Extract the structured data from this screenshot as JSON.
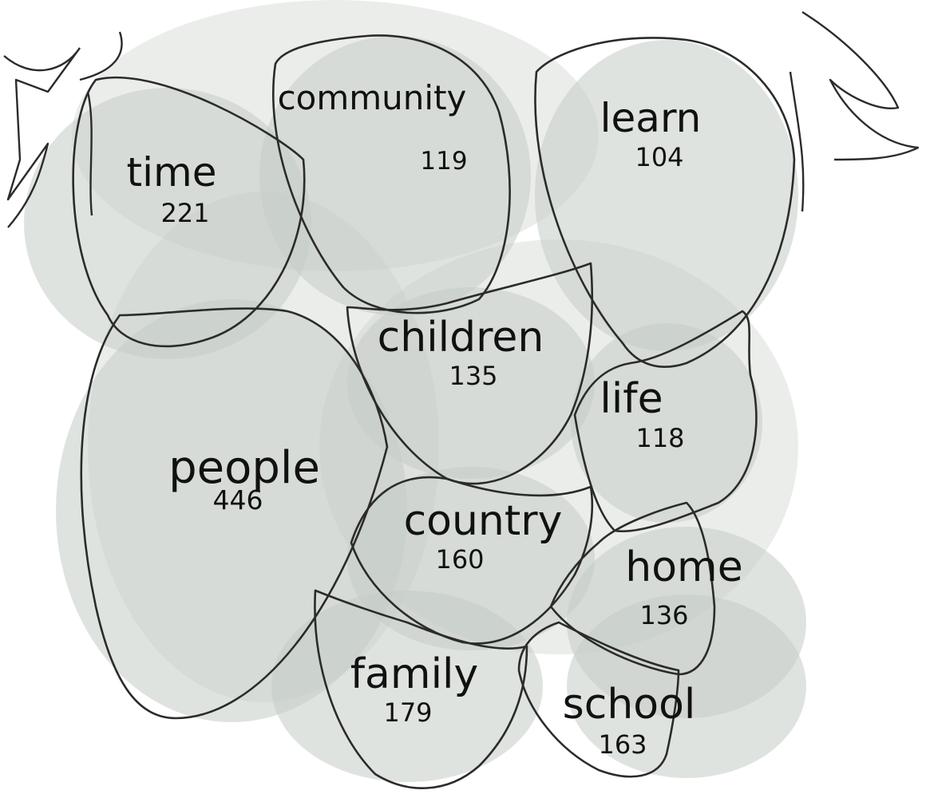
{
  "chart_data": {
    "type": "word-bubble",
    "title": "",
    "colors": {
      "blob": "#c5ccc6",
      "outline": "#2b2b2b",
      "text": "#111111"
    },
    "words": [
      {
        "word": "people",
        "count": 446
      },
      {
        "word": "time",
        "count": 221
      },
      {
        "word": "family",
        "count": 179
      },
      {
        "word": "school",
        "count": 163
      },
      {
        "word": "country",
        "count": 160
      },
      {
        "word": "home",
        "count": 136
      },
      {
        "word": "children",
        "count": 135
      },
      {
        "word": "community",
        "count": 119
      },
      {
        "word": "life",
        "count": 118
      },
      {
        "word": "learn",
        "count": 104
      }
    ]
  }
}
